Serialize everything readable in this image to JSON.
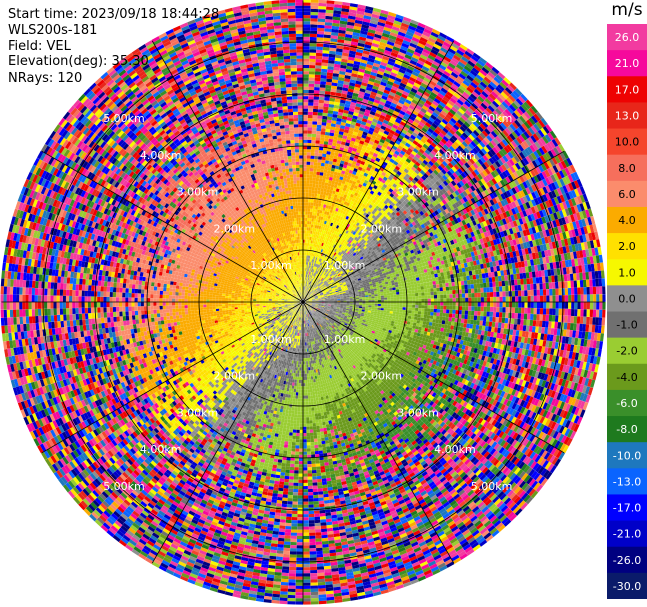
{
  "info": {
    "start_time": "Start time: 2023/09/18 18:44:28",
    "site": "WLS200s-181",
    "field": "Field: VEL",
    "elevation": "Elevation(deg): 35.30",
    "nrays": "NRays: 120"
  },
  "colorbar": {
    "unit": "m/s",
    "ticks": [
      "26.0",
      "21.0",
      "17.0",
      "13.0",
      "10.0",
      "8.0",
      "6.0",
      "4.0",
      "2.0",
      "1.0",
      "0.0",
      "-1.0",
      "-2.0",
      "-4.0",
      "-6.0",
      "-8.0",
      "-10.0",
      "-13.0",
      "-17.0",
      "-21.0",
      "-26.0",
      "-30.0"
    ],
    "colors": [
      "#f23ba0",
      "#f6099c",
      "#ee0202",
      "#e8261a",
      "#f5452c",
      "#f66f5c",
      "#fb8c6c",
      "#fbab00",
      "#ffe000",
      "#f6f800",
      "#8f8f8f",
      "#707070",
      "#9acd32",
      "#6b9a1c",
      "#3a8f2a",
      "#1e7a1e",
      "#1e78be",
      "#0a64ff",
      "#0000ff",
      "#0000c8",
      "#000080",
      "#0a1b6a"
    ]
  },
  "chart_data": {
    "type": "ppi",
    "field": "VEL",
    "units": "m/s",
    "range_rings_km": [
      1.0,
      2.0,
      3.0,
      4.0,
      5.0
    ],
    "range_ring_labels": [
      "1.00km",
      "2.00km",
      "3.00km",
      "4.00km",
      "5.00km"
    ],
    "max_range_km": 5.8,
    "n_rays": 120,
    "velocity_pattern": [
      {
        "region": "north-west",
        "sign": "positive",
        "typical_values": [
          2.0,
          4.0,
          6.0
        ]
      },
      {
        "region": "south-east",
        "sign": "negative",
        "typical_values": [
          -2.0,
          -4.0,
          -8.0
        ]
      },
      {
        "region": "far range",
        "sign": "mixed",
        "note": "noise"
      }
    ]
  }
}
